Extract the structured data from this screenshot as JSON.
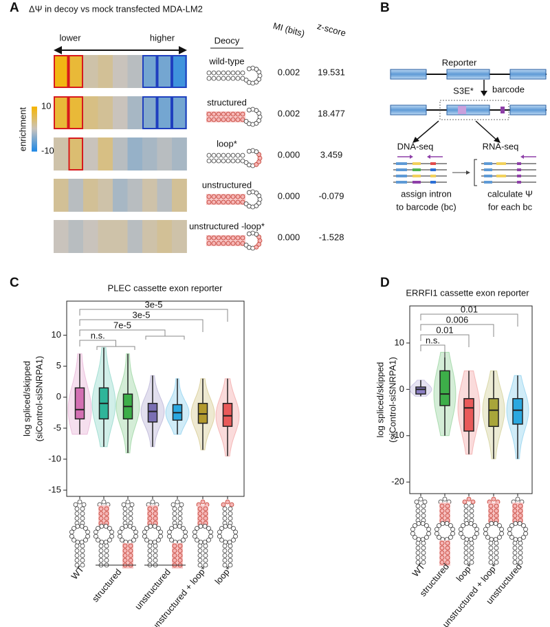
{
  "panel_labels": [
    "A",
    "B",
    "C",
    "D"
  ],
  "diagram": {
    "reporter": "Reporter",
    "insert": "S3E*",
    "barcode": "barcode",
    "dna_seq": "DNA-seq",
    "rna_seq": "RNA-seq",
    "left_caption": [
      "assign intron",
      "to barcode (bc)"
    ],
    "right_caption": [
      "calculate Ψ",
      "for each bc"
    ]
  },
  "chart_data": [
    {
      "type": "heatmap",
      "title": "ΔΨ in decoy vs mock transfected MDA-LM2",
      "low_label": "lower",
      "high_label": "higher",
      "row_header": "Deocy",
      "rows": [
        "wild-type",
        "structured",
        "loop*",
        "unstructured",
        "unstructured -loop*"
      ],
      "values": [
        [
          9,
          7,
          1,
          2,
          0,
          -1,
          -5,
          -5,
          -8
        ],
        [
          7,
          7,
          3,
          2,
          0,
          -2,
          -4,
          -5,
          -5
        ],
        [
          1,
          4,
          0,
          3,
          -1,
          -3,
          -2,
          -1,
          -2
        ],
        [
          2,
          -1,
          2,
          1,
          -2,
          -1,
          1,
          -1,
          2
        ],
        [
          0,
          -1,
          0,
          1,
          1,
          -1,
          1,
          2,
          1
        ]
      ],
      "red_outline": [
        [
          0,
          1
        ],
        [
          0,
          1
        ],
        [
          1
        ],
        [],
        []
      ],
      "blue_outline": [
        [
          6,
          7,
          8
        ],
        [
          6,
          7,
          8
        ],
        [],
        [],
        []
      ],
      "clim": [
        -10,
        10
      ],
      "cticks": [
        10,
        -10
      ],
      "colorbar_label": "enrichment",
      "colors": [
        "#1e88e5",
        "#c9c3bc",
        "#f6b400"
      ],
      "table": {
        "headers": [
          "MI (bits)",
          "z-score"
        ],
        "rows": [
          [
            "0.002",
            "19.531"
          ],
          [
            "0.002",
            "18.477"
          ],
          [
            "0.000",
            "3.459"
          ],
          [
            "0.000",
            "-0.079"
          ],
          [
            "0.000",
            "-1.528"
          ]
        ]
      }
    },
    {
      "type": "box",
      "title": "PLEC cassette exon reporter",
      "ylabel": [
        "log spliced/skipped",
        "(siControl-siSNRPA1)"
      ],
      "categories": [
        "WT",
        null,
        null,
        null,
        null,
        "unstructured + loop*",
        "loop*"
      ],
      "groups": [
        {
          "label": "structured",
          "from": 1,
          "to": 2
        },
        {
          "label": "unstructured",
          "from": 3,
          "to": 4
        }
      ],
      "boxes": [
        [
          -6,
          -3.5,
          -2,
          1.5,
          7
        ],
        [
          -8,
          -3.5,
          -1,
          1.5,
          8
        ],
        [
          -9,
          -3.5,
          -1.5,
          0.5,
          7
        ],
        [
          -8,
          -4,
          -2.3,
          -1,
          3.5
        ],
        [
          -6,
          -3.7,
          -2.5,
          -1.2,
          3
        ],
        [
          -8.5,
          -4.2,
          -2.7,
          -1,
          3
        ],
        [
          -9.5,
          -4.7,
          -3,
          -1,
          3
        ]
      ],
      "colors": [
        "#d36fb3",
        "#2fb59a",
        "#3dae49",
        "#7a6fb3",
        "#2ba8e0",
        "#b39a2e",
        "#e95a5a"
      ],
      "comparisons": [
        {
          "label": "n.s.",
          "to": [
            1,
            2
          ]
        },
        {
          "label": "7e-5",
          "to": [
            3,
            4
          ]
        },
        {
          "label": "3e-5",
          "to": [
            5
          ]
        },
        {
          "label": "3e-5",
          "to": [
            6
          ]
        }
      ],
      "ylim": [
        -16,
        15.5
      ],
      "yticks": [
        10,
        5,
        0,
        -5,
        -10,
        -15
      ]
    },
    {
      "type": "box",
      "title": "ERRFI1 cassette exon reporter",
      "ylabel": [
        "log spliced/skipped",
        "(siControl-siSNRPA1)"
      ],
      "categories": [
        "WT",
        "structured",
        "loop*",
        "unstructured + loop*",
        "unstructured"
      ],
      "groups": [],
      "boxes": [
        [
          -1.5,
          -1,
          0,
          0.5,
          2
        ],
        [
          -10,
          -3.5,
          -1,
          4,
          8
        ],
        [
          -14,
          -9,
          -4,
          -2,
          4
        ],
        [
          -15,
          -8,
          -4.5,
          -2,
          4
        ],
        [
          -15,
          -7.5,
          -4.5,
          -2,
          3
        ]
      ],
      "colors": [
        "#8c7fc4",
        "#3dae49",
        "#e95a5a",
        "#a8a53a",
        "#2ba8e0"
      ],
      "comparisons": [
        {
          "label": "n.s.",
          "to": [
            1
          ]
        },
        {
          "label": "0.01",
          "to": [
            2
          ]
        },
        {
          "label": "0.006",
          "to": [
            3
          ]
        },
        {
          "label": "0.01",
          "to": [
            4
          ]
        }
      ],
      "ylim": [
        -22.5,
        18
      ],
      "yticks": [
        10,
        0,
        -10,
        -20
      ]
    }
  ]
}
